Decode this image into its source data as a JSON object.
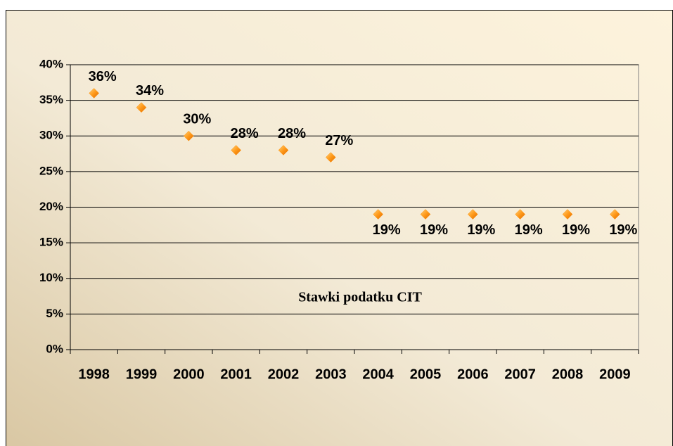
{
  "chart_data": {
    "type": "scatter",
    "title": "Stawki podatku CIT",
    "categories": [
      "1998",
      "1999",
      "2000",
      "2001",
      "2002",
      "2003",
      "2004",
      "2005",
      "2006",
      "2007",
      "2008",
      "2009"
    ],
    "values": [
      36,
      34,
      30,
      28,
      28,
      27,
      19,
      19,
      19,
      19,
      19,
      19
    ],
    "value_labels": [
      "36%",
      "34%",
      "30%",
      "28%",
      "28%",
      "27%",
      "19%",
      "19%",
      "19%",
      "19%",
      "19%",
      "19%"
    ],
    "color": "#ff8c00",
    "ylim": [
      0,
      40
    ],
    "yticks": [
      {
        "value": 0,
        "label": "0%"
      },
      {
        "value": 5,
        "label": "5%"
      },
      {
        "value": 10,
        "label": "10%"
      },
      {
        "value": 15,
        "label": "15%"
      },
      {
        "value": 20,
        "label": "20%"
      },
      {
        "value": 25,
        "label": "25%"
      },
      {
        "value": 30,
        "label": "30%"
      },
      {
        "value": 35,
        "label": "35%"
      },
      {
        "value": 40,
        "label": "40%"
      }
    ],
    "grid": true
  }
}
